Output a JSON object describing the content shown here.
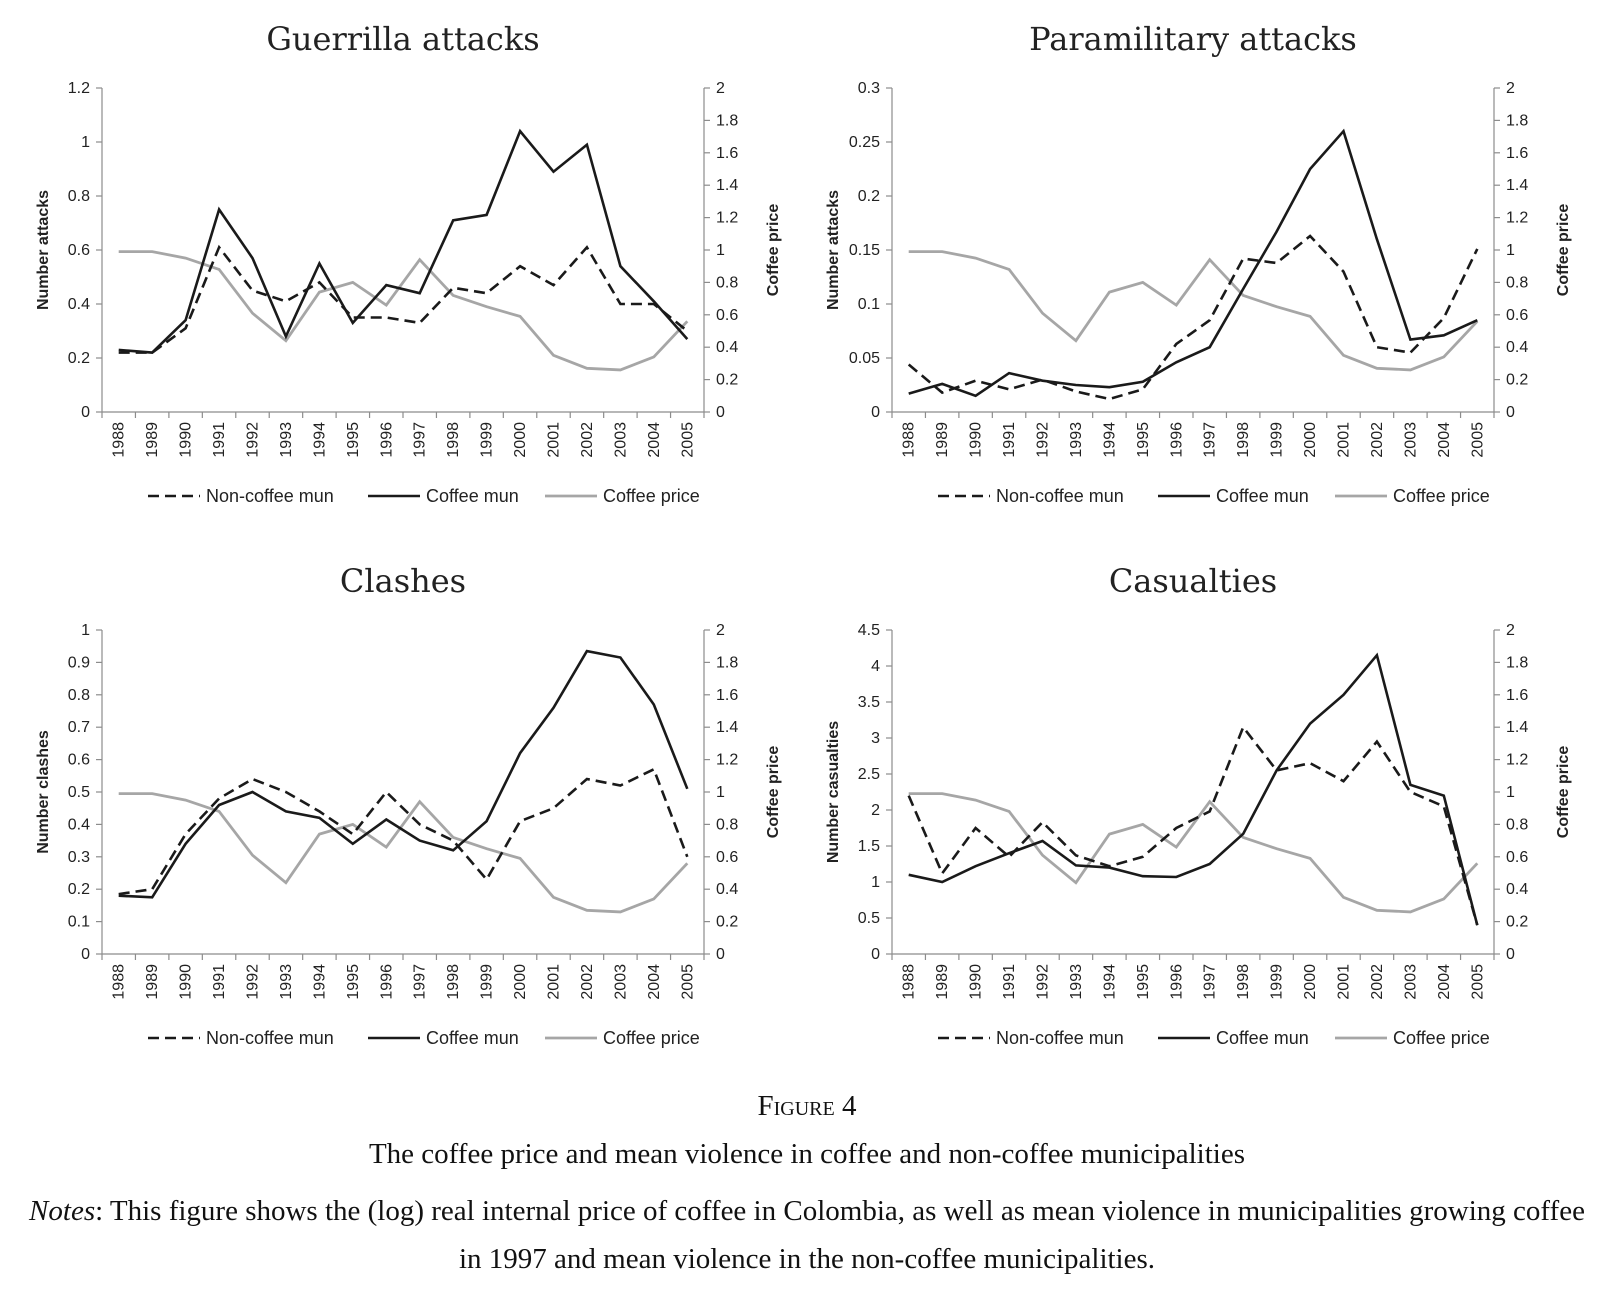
{
  "figure": {
    "label": "Figure 4",
    "title": "The coffee price and mean violence in coffee and non-coffee municipalities",
    "notes_label": "Notes",
    "notes_text": ": This figure shows the (log) real internal price of coffee in Colombia, as well as mean violence in municipalities growing coffee in 1997 and mean violence in the non-coffee municipalities."
  },
  "colors": {
    "non_coffee": "#1a1a1a",
    "coffee_mun": "#1a1a1a",
    "coffee_price": "#a6a6a6"
  },
  "chart_data": [
    {
      "type": "line",
      "title": "Guerrilla attacks",
      "ylabel": "Number attacks",
      "y2label": "Coffee price",
      "x": [
        "1988",
        "1989",
        "1990",
        "1991",
        "1992",
        "1993",
        "1994",
        "1995",
        "1996",
        "1997",
        "1998",
        "1999",
        "2000",
        "2001",
        "2002",
        "2003",
        "2004",
        "2005"
      ],
      "ylim": [
        0,
        1.2
      ],
      "yticks": [
        "0",
        "0.2",
        "0.4",
        "0.6",
        "0.8",
        "1",
        "1.2"
      ],
      "y2lim": [
        0,
        2
      ],
      "y2ticks": [
        "0",
        "0.2",
        "0.4",
        "0.6",
        "0.8",
        "1",
        "1.2",
        "1.4",
        "1.6",
        "1.8",
        "2"
      ],
      "grid": false,
      "legend": "bottom",
      "series": [
        {
          "name": "Non-coffee mun",
          "style": "dashed",
          "axis": "left",
          "values": [
            0.22,
            0.22,
            0.31,
            0.61,
            0.45,
            0.41,
            0.48,
            0.35,
            0.35,
            0.33,
            0.46,
            0.44,
            0.54,
            0.47,
            0.61,
            0.4,
            0.4,
            0.3
          ]
        },
        {
          "name": "Coffee mun",
          "style": "solid",
          "axis": "left",
          "values": [
            0.23,
            0.22,
            0.34,
            0.75,
            0.57,
            0.28,
            0.55,
            0.33,
            0.47,
            0.44,
            0.71,
            0.73,
            1.04,
            0.89,
            0.99,
            0.54,
            0.41,
            0.27
          ]
        },
        {
          "name": "Coffee price",
          "style": "gray",
          "axis": "right",
          "values": [
            0.99,
            0.99,
            0.95,
            0.88,
            0.61,
            0.44,
            0.74,
            0.8,
            0.66,
            0.94,
            0.72,
            0.65,
            0.59,
            0.35,
            0.27,
            0.26,
            0.34,
            0.56
          ]
        }
      ]
    },
    {
      "type": "line",
      "title": "Paramilitary attacks",
      "ylabel": "Number attacks",
      "y2label": "Coffee price",
      "x": [
        "1988",
        "1989",
        "1990",
        "1991",
        "1992",
        "1993",
        "1994",
        "1995",
        "1996",
        "1997",
        "1998",
        "1999",
        "2000",
        "2001",
        "2002",
        "2003",
        "2004",
        "2005"
      ],
      "ylim": [
        0,
        0.3
      ],
      "yticks": [
        "0",
        "0.05",
        "0.1",
        "0.15",
        "0.2",
        "0.25",
        "0.3"
      ],
      "y2lim": [
        0,
        2
      ],
      "y2ticks": [
        "0",
        "0.2",
        "0.4",
        "0.6",
        "0.8",
        "1",
        "1.2",
        "1.4",
        "1.6",
        "1.8",
        "2"
      ],
      "grid": false,
      "legend": "bottom",
      "series": [
        {
          "name": "Non-coffee mun",
          "style": "dashed",
          "axis": "left",
          "values": [
            0.044,
            0.018,
            0.029,
            0.021,
            0.03,
            0.019,
            0.012,
            0.021,
            0.063,
            0.085,
            0.142,
            0.138,
            0.163,
            0.13,
            0.06,
            0.055,
            0.087,
            0.151
          ]
        },
        {
          "name": "Coffee mun",
          "style": "solid",
          "axis": "left",
          "values": [
            0.017,
            0.026,
            0.015,
            0.036,
            0.029,
            0.025,
            0.023,
            0.028,
            0.046,
            0.06,
            0.114,
            0.167,
            0.225,
            0.26,
            0.16,
            0.067,
            0.071,
            0.085
          ]
        },
        {
          "name": "Coffee price",
          "style": "gray",
          "axis": "right",
          "values": [
            0.99,
            0.99,
            0.95,
            0.88,
            0.61,
            0.44,
            0.74,
            0.8,
            0.66,
            0.94,
            0.72,
            0.65,
            0.59,
            0.35,
            0.27,
            0.26,
            0.34,
            0.56
          ]
        }
      ]
    },
    {
      "type": "line",
      "title": "Clashes",
      "ylabel": "Number clashes",
      "y2label": "Coffee price",
      "x": [
        "1988",
        "1989",
        "1990",
        "1991",
        "1992",
        "1993",
        "1994",
        "1995",
        "1996",
        "1997",
        "1998",
        "1999",
        "2000",
        "2001",
        "2002",
        "2003",
        "2004",
        "2005"
      ],
      "ylim": [
        0,
        1
      ],
      "yticks": [
        "0",
        "0.1",
        "0.2",
        "0.3",
        "0.4",
        "0.5",
        "0.6",
        "0.7",
        "0.8",
        "0.9",
        "1"
      ],
      "y2lim": [
        0,
        2
      ],
      "y2ticks": [
        "0",
        "0.2",
        "0.4",
        "0.6",
        "0.8",
        "1",
        "1.2",
        "1.4",
        "1.6",
        "1.8",
        "2"
      ],
      "grid": false,
      "legend": "bottom",
      "series": [
        {
          "name": "Non-coffee mun",
          "style": "dashed",
          "axis": "left",
          "values": [
            0.185,
            0.2,
            0.37,
            0.48,
            0.54,
            0.5,
            0.44,
            0.37,
            0.5,
            0.4,
            0.35,
            0.23,
            0.41,
            0.45,
            0.54,
            0.52,
            0.57,
            0.3
          ]
        },
        {
          "name": "Coffee mun",
          "style": "solid",
          "axis": "left",
          "values": [
            0.18,
            0.175,
            0.34,
            0.46,
            0.5,
            0.44,
            0.42,
            0.34,
            0.415,
            0.35,
            0.32,
            0.41,
            0.62,
            0.76,
            0.935,
            0.915,
            0.77,
            0.51
          ]
        },
        {
          "name": "Coffee price",
          "style": "gray",
          "axis": "right",
          "values": [
            0.99,
            0.99,
            0.95,
            0.88,
            0.61,
            0.44,
            0.74,
            0.8,
            0.66,
            0.94,
            0.72,
            0.65,
            0.59,
            0.35,
            0.27,
            0.26,
            0.34,
            0.56
          ]
        }
      ]
    },
    {
      "type": "line",
      "title": "Casualties",
      "ylabel": "Number casualties",
      "y2label": "Coffee price",
      "x": [
        "1988",
        "1989",
        "1990",
        "1991",
        "1992",
        "1993",
        "1994",
        "1995",
        "1996",
        "1997",
        "1998",
        "1999",
        "2000",
        "2001",
        "2002",
        "2003",
        "2004",
        "2005"
      ],
      "ylim": [
        0,
        4.5
      ],
      "yticks": [
        "0",
        "0.5",
        "1",
        "1.5",
        "2",
        "2.5",
        "3",
        "3.5",
        "4",
        "4.5"
      ],
      "y2lim": [
        0,
        2
      ],
      "y2ticks": [
        "0",
        "0.2",
        "0.4",
        "0.6",
        "0.8",
        "1",
        "1.2",
        "1.4",
        "1.6",
        "1.8",
        "2"
      ],
      "grid": false,
      "legend": "bottom",
      "series": [
        {
          "name": "Non-coffee mun",
          "style": "dashed",
          "axis": "left",
          "values": [
            2.2,
            1.12,
            1.75,
            1.35,
            1.83,
            1.37,
            1.22,
            1.35,
            1.75,
            1.98,
            3.15,
            2.55,
            2.65,
            2.4,
            2.95,
            2.25,
            2.05,
            0.4
          ]
        },
        {
          "name": "Coffee mun",
          "style": "solid",
          "axis": "left",
          "values": [
            1.1,
            1.0,
            1.22,
            1.4,
            1.57,
            1.23,
            1.2,
            1.08,
            1.07,
            1.25,
            1.67,
            2.55,
            3.2,
            3.6,
            4.15,
            2.35,
            2.2,
            0.4
          ]
        },
        {
          "name": "Coffee price",
          "style": "gray",
          "axis": "right",
          "values": [
            0.99,
            0.99,
            0.95,
            0.88,
            0.61,
            0.44,
            0.74,
            0.8,
            0.66,
            0.94,
            0.72,
            0.65,
            0.59,
            0.35,
            0.27,
            0.26,
            0.34,
            0.56
          ]
        }
      ]
    }
  ]
}
